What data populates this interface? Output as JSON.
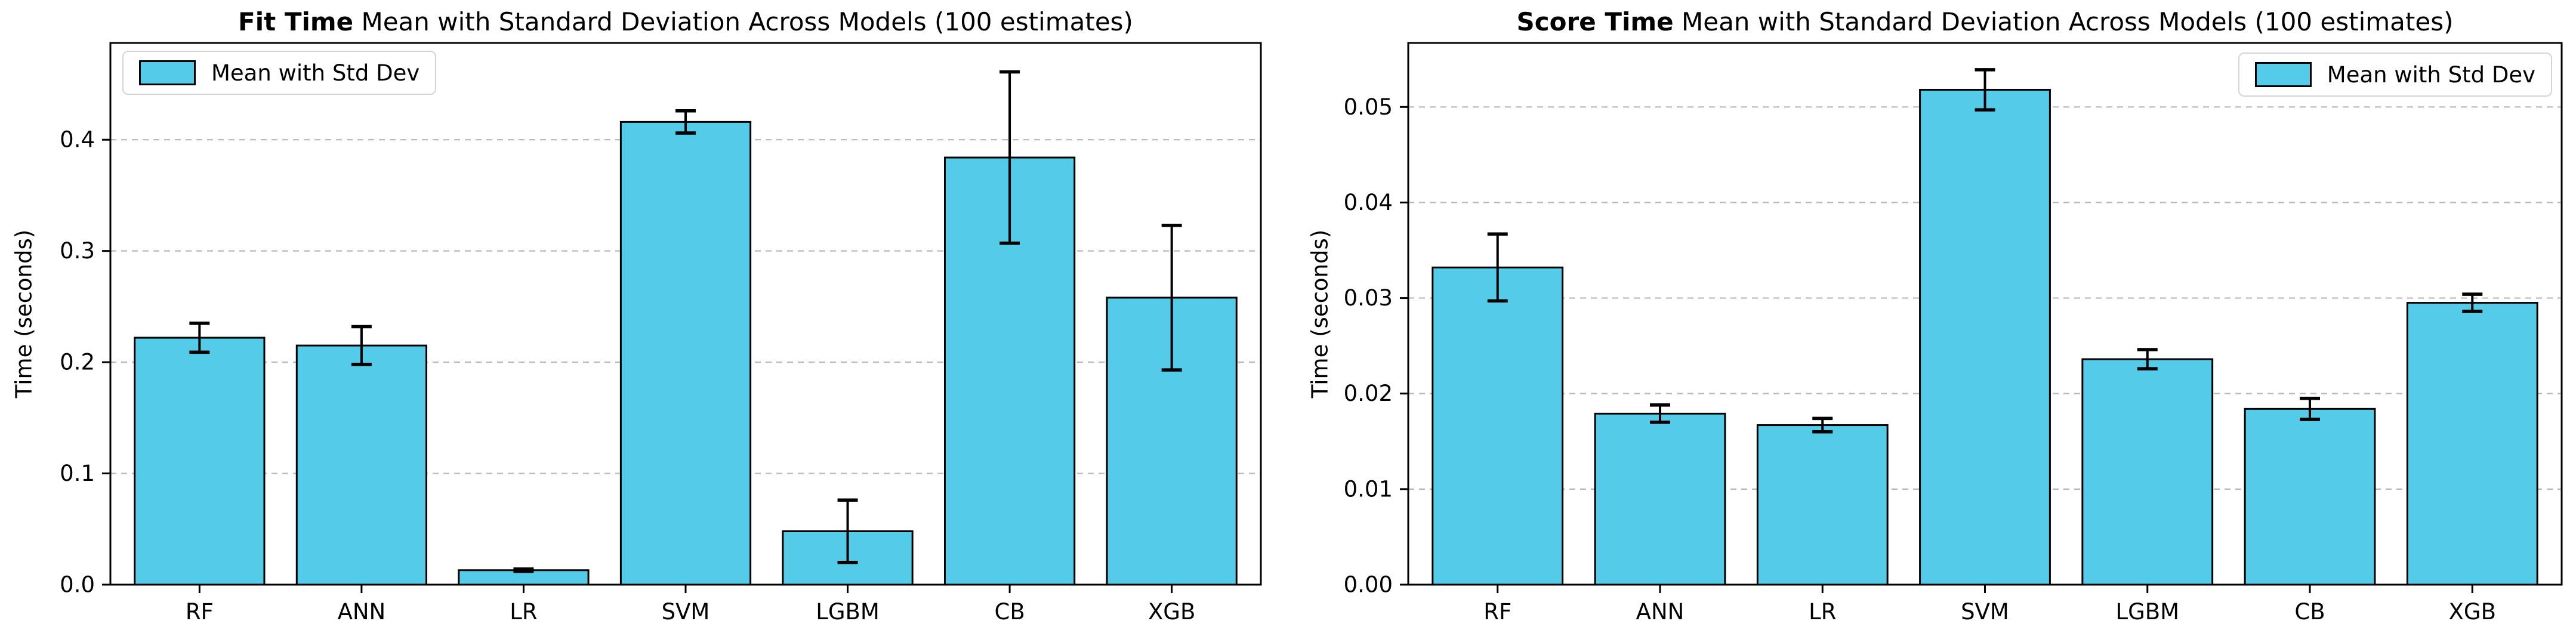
{
  "page": {
    "background": "#ffffff"
  },
  "colors": {
    "bar_fill": "#54cbe8",
    "bar_edge": "#000000",
    "error_bar": "#000000",
    "grid": "#b8b8b8",
    "spine": "#000000",
    "text": "#000000",
    "legend_border": "#d4d4d4",
    "legend_bg": "#ffffff"
  },
  "legend": {
    "label": "Mean with Std Dev"
  },
  "chart_data": [
    {
      "id": "fit-time",
      "type": "bar",
      "title_bold": "Fit Time",
      "title_rest": " Mean with Standard Deviation Across Models (100 estimates)",
      "ylabel": "Time (seconds)",
      "categories": [
        "RF",
        "ANN",
        "LR",
        "SVM",
        "LGBM",
        "CB",
        "XGB"
      ],
      "values": [
        0.222,
        0.215,
        0.013,
        0.416,
        0.048,
        0.384,
        0.258
      ],
      "errors": [
        0.013,
        0.017,
        0.001,
        0.01,
        0.028,
        0.077,
        0.065
      ],
      "yticks": [
        0.0,
        0.1,
        0.2,
        0.3,
        0.4
      ],
      "ytick_labels": [
        "0.0",
        "0.1",
        "0.2",
        "0.3",
        "0.4"
      ],
      "ylim": [
        0,
        0.487
      ],
      "grid": "horizontal-dashed",
      "legend_position": "top-left",
      "legend_label": "Mean with Std Dev"
    },
    {
      "id": "score-time",
      "type": "bar",
      "title_bold": "Score Time",
      "title_rest": " Mean with Standard Deviation Across Models (100 estimates)",
      "ylabel": "Time (seconds)",
      "categories": [
        "RF",
        "ANN",
        "LR",
        "SVM",
        "LGBM",
        "CB",
        "XGB"
      ],
      "values": [
        0.0332,
        0.0179,
        0.0167,
        0.0518,
        0.0236,
        0.0184,
        0.0295
      ],
      "errors": [
        0.0035,
        0.0009,
        0.0007,
        0.0021,
        0.001,
        0.0011,
        0.0009
      ],
      "yticks": [
        0.0,
        0.01,
        0.02,
        0.03,
        0.04,
        0.05
      ],
      "ytick_labels": [
        "0.00",
        "0.01",
        "0.02",
        "0.03",
        "0.04",
        "0.05"
      ],
      "ylim": [
        0,
        0.0567
      ],
      "grid": "horizontal-dashed",
      "legend_position": "top-right",
      "legend_label": "Mean with Std Dev"
    }
  ]
}
